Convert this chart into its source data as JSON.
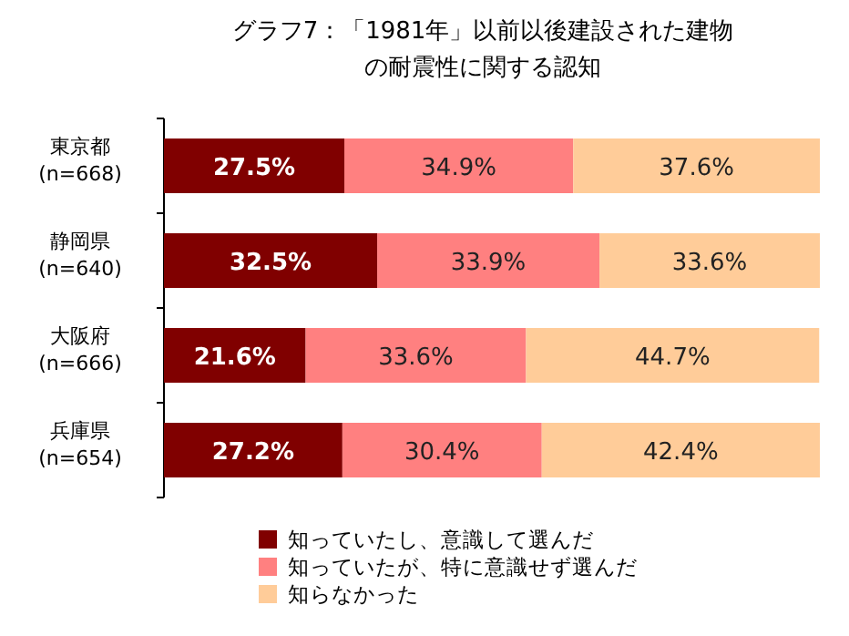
{
  "chart_data": {
    "type": "bar",
    "orientation": "horizontal",
    "stacked": true,
    "title": "グラフ7：「1981年」以前以後建設された建物の耐震性に関する認知",
    "categories": [
      "東京都 (n=668)",
      "静岡県 (n=640)",
      "大阪府 (n=666)",
      "兵庫県 (n=654)"
    ],
    "xlim": [
      0,
      100
    ],
    "legend": "bottom",
    "series": [
      {
        "name": "知っていたし、意識して選んだ",
        "color": "#800000",
        "values": [
          27.5,
          32.5,
          21.6,
          27.2
        ],
        "value_labels": [
          "27.5%",
          "32.5%",
          "21.6%",
          "27.2%"
        ]
      },
      {
        "name": "知っていたが、特に意識せず選んだ",
        "color": "#ff8080",
        "values": [
          34.9,
          33.9,
          33.6,
          30.4
        ],
        "value_labels": [
          "34.9%",
          "33.9%",
          "33.6%",
          "30.4%"
        ]
      },
      {
        "name": "知らなかった",
        "color": "#ffcc99",
        "values": [
          37.6,
          33.6,
          44.7,
          42.4
        ],
        "value_labels": [
          "37.6%",
          "33.6%",
          "44.7%",
          "42.4%"
        ]
      }
    ]
  }
}
